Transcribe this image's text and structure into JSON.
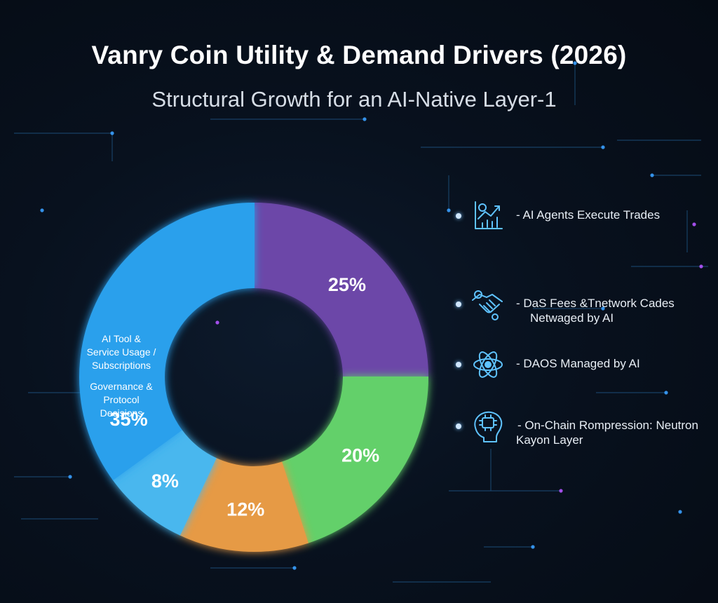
{
  "title": "Vanry Coin Utility & Demand Drivers (2026)",
  "subtitle": "Structural Growth for an AI-Native Layer-1",
  "chart_data": {
    "type": "pie",
    "variant": "donut",
    "start_angle_deg": 0,
    "direction": "clockwise",
    "slices": [
      {
        "label": "25%",
        "value": 25,
        "color": "#6c46a8"
      },
      {
        "label": "20%",
        "value": 20,
        "color": "#63d06a"
      },
      {
        "label": "12%",
        "value": 12,
        "color": "#e69a45"
      },
      {
        "label": "8%",
        "value": 8,
        "color": "#4ab7ee"
      },
      {
        "label": "35%",
        "value": 35,
        "color": "#2aa0ec"
      }
    ],
    "inner_labels": [
      "AI Tool &",
      "Service Usage /",
      "Subscriptions",
      "Governance &",
      "Protocol",
      "Decisions"
    ]
  },
  "legend": [
    {
      "icon": "chart-growth-icon",
      "lines": [
        "- AI Agents Execute Trades"
      ]
    },
    {
      "icon": "handshake-icon",
      "lines": [
        "- DaS Fees &Tnetwork Cades",
        "Netwaged by AI"
      ]
    },
    {
      "icon": "atom-icon",
      "lines": [
        "- DAOS Managed by AI"
      ]
    },
    {
      "icon": "brain-chip-icon",
      "lines": [
        "- On-Chain Rompression: Neutron",
        "Kayon Layer"
      ]
    }
  ]
}
